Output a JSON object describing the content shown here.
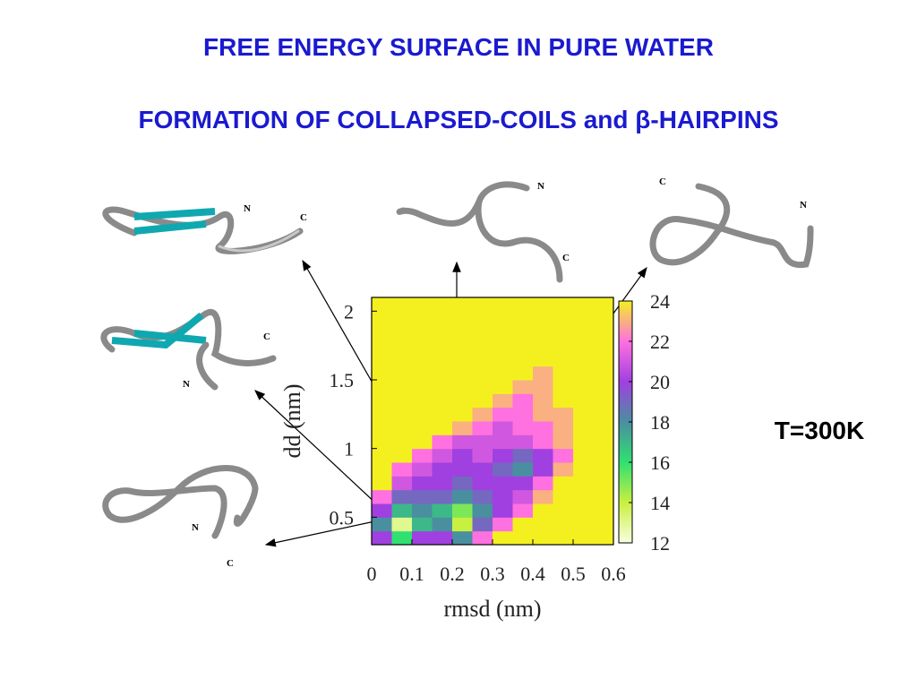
{
  "title": "FREE ENERGY SURFACE IN PURE WATER",
  "subtitle": "FORMATION OF COLLAPSED-COILS and β-HAIRPINS",
  "temperature": "T=300K",
  "structures": [
    {
      "n_label": "N",
      "c_label": "C"
    },
    {
      "n_label": "N",
      "c_label": "C"
    },
    {
      "n_label": "N",
      "c_label": "C"
    },
    {
      "n_label": "N",
      "c_label": "C"
    },
    {
      "n_label": "N",
      "c_label": "C"
    }
  ],
  "chart_data": {
    "type": "heatmap",
    "xlabel": "rmsd (nm)",
    "ylabel": "dd (nm)",
    "xlim": [
      0,
      0.6
    ],
    "ylim": [
      0.3,
      2.1
    ],
    "xticks": [
      0,
      0.1,
      0.2,
      0.3,
      0.4,
      0.5,
      0.6
    ],
    "yticks": [
      0.5,
      1,
      1.5,
      2
    ],
    "xbins": [
      0,
      0.05,
      0.1,
      0.15,
      0.2,
      0.25,
      0.3,
      0.35,
      0.4,
      0.45,
      0.5,
      0.55,
      0.6
    ],
    "ybins": [
      0.3,
      0.4,
      0.5,
      0.6,
      0.7,
      0.8,
      0.9,
      1.0,
      1.1,
      1.2,
      1.3,
      1.4,
      1.5,
      1.6,
      1.7,
      1.8,
      1.9,
      2.0,
      2.1
    ],
    "values": [
      [
        20,
        16,
        20,
        20,
        18,
        22,
        24,
        24,
        24,
        24,
        24,
        24
      ],
      [
        18,
        13,
        17,
        18,
        14,
        19,
        22,
        24,
        24,
        24,
        24,
        24
      ],
      [
        20,
        17,
        18,
        17,
        15,
        18,
        20,
        22,
        24,
        24,
        24,
        24
      ],
      [
        22,
        19,
        19,
        19,
        18,
        19,
        20,
        21,
        23,
        24,
        24,
        24
      ],
      [
        24,
        21,
        20,
        20,
        19,
        20,
        20,
        20,
        22,
        24,
        24,
        24
      ],
      [
        24,
        22,
        21,
        20,
        20,
        20,
        19,
        18,
        20,
        23,
        24,
        24
      ],
      [
        24,
        24,
        22,
        21,
        20,
        21,
        20,
        19,
        20,
        22,
        24,
        24
      ],
      [
        24,
        24,
        24,
        22,
        21,
        21,
        21,
        21,
        22,
        23,
        24,
        24
      ],
      [
        24,
        24,
        24,
        24,
        23,
        22,
        21,
        22,
        22,
        23,
        24,
        24
      ],
      [
        24,
        24,
        24,
        24,
        24,
        23,
        22,
        22,
        23,
        23,
        24,
        24
      ],
      [
        24,
        24,
        24,
        24,
        24,
        24,
        23,
        22,
        23,
        24,
        24,
        24
      ],
      [
        24,
        24,
        24,
        24,
        24,
        24,
        24,
        23,
        23,
        24,
        24,
        24
      ],
      [
        24,
        24,
        24,
        24,
        24,
        24,
        24,
        24,
        23,
        24,
        24,
        24
      ],
      [
        24,
        24,
        24,
        24,
        24,
        24,
        24,
        24,
        24,
        24,
        24,
        24
      ],
      [
        24,
        24,
        24,
        24,
        24,
        24,
        24,
        24,
        24,
        24,
        24,
        24
      ],
      [
        24,
        24,
        24,
        24,
        24,
        24,
        24,
        24,
        24,
        24,
        24,
        24
      ],
      [
        24,
        24,
        24,
        24,
        24,
        24,
        24,
        24,
        24,
        24,
        24,
        24
      ],
      [
        24,
        24,
        24,
        24,
        24,
        24,
        24,
        24,
        24,
        24,
        24,
        24
      ]
    ],
    "colorbar": {
      "zlim": [
        12,
        24
      ],
      "zticks": [
        12,
        14,
        16,
        18,
        20,
        22,
        24
      ],
      "colors": [
        "#f8ffe0",
        "#c8f040",
        "#30e070",
        "#4a8fa0",
        "#a040e0",
        "#ff70e0",
        "#f4f020"
      ]
    }
  }
}
